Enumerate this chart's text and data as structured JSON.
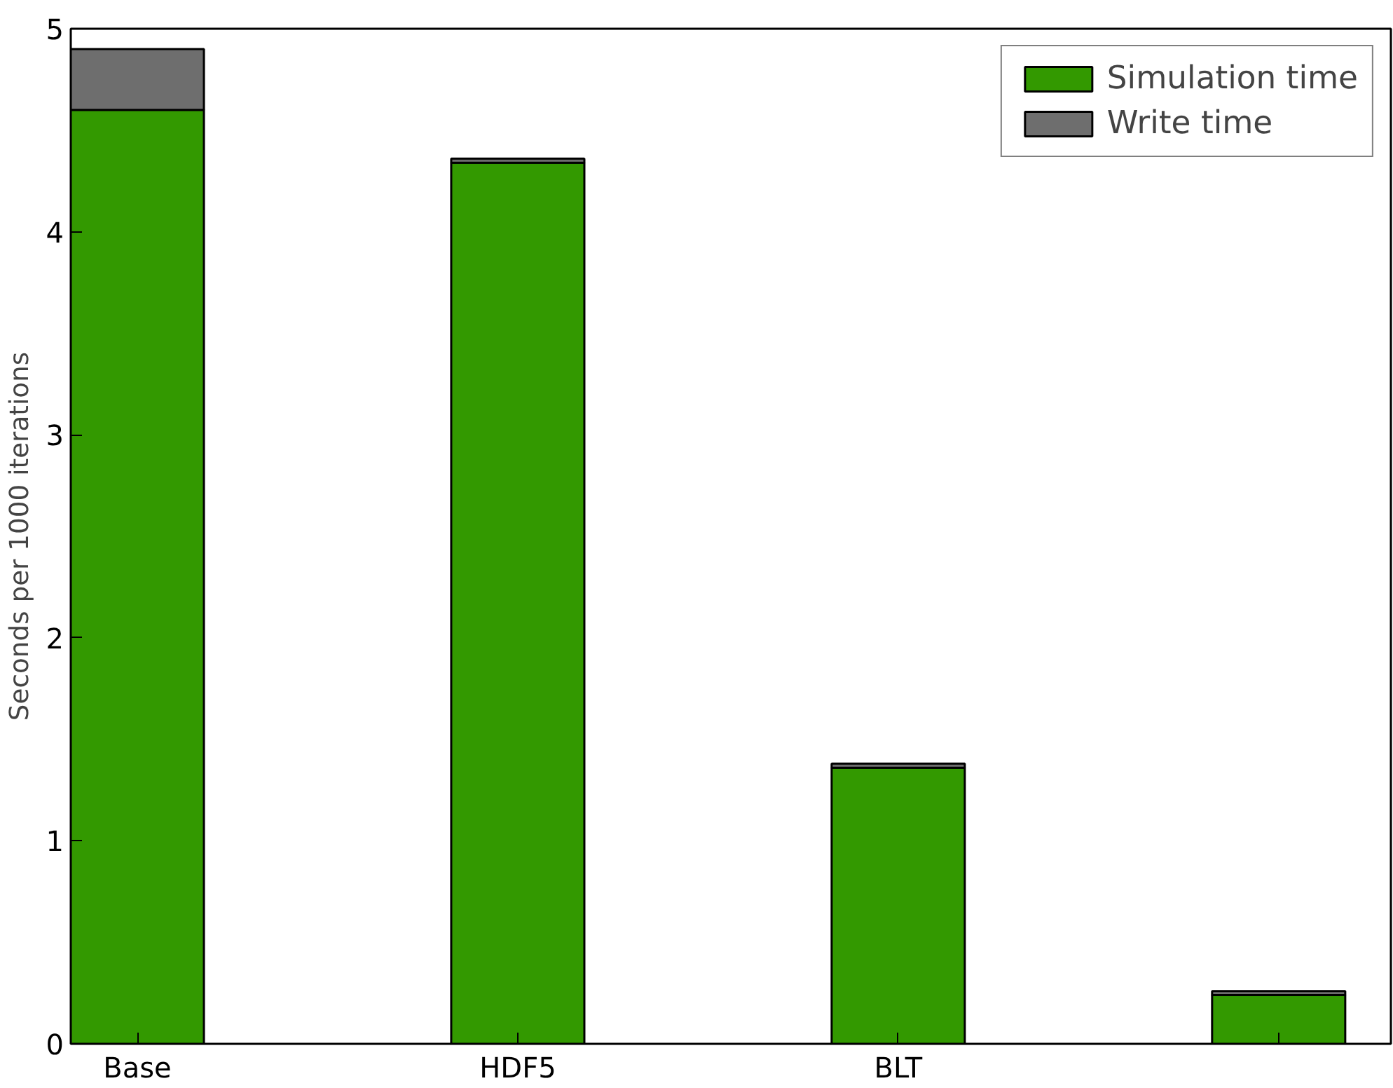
{
  "chart_data": {
    "type": "bar",
    "stacked": true,
    "ylabel": "Seconds per 1000 iterations",
    "categories": [
      "Base",
      "HDF5",
      "BLT",
      null
    ],
    "series": [
      {
        "name": "Simulation time",
        "color": "#339900",
        "values": [
          4.6,
          4.34,
          1.36,
          0.24
        ]
      },
      {
        "name": "Write time",
        "color": "#6e6e6e",
        "values": [
          0.3,
          0.02,
          0.02,
          0.02
        ]
      }
    ],
    "ylim": [
      0,
      5
    ],
    "yticks": [
      0,
      1,
      2,
      3,
      4,
      5
    ],
    "grid": false,
    "legend": "top right"
  }
}
